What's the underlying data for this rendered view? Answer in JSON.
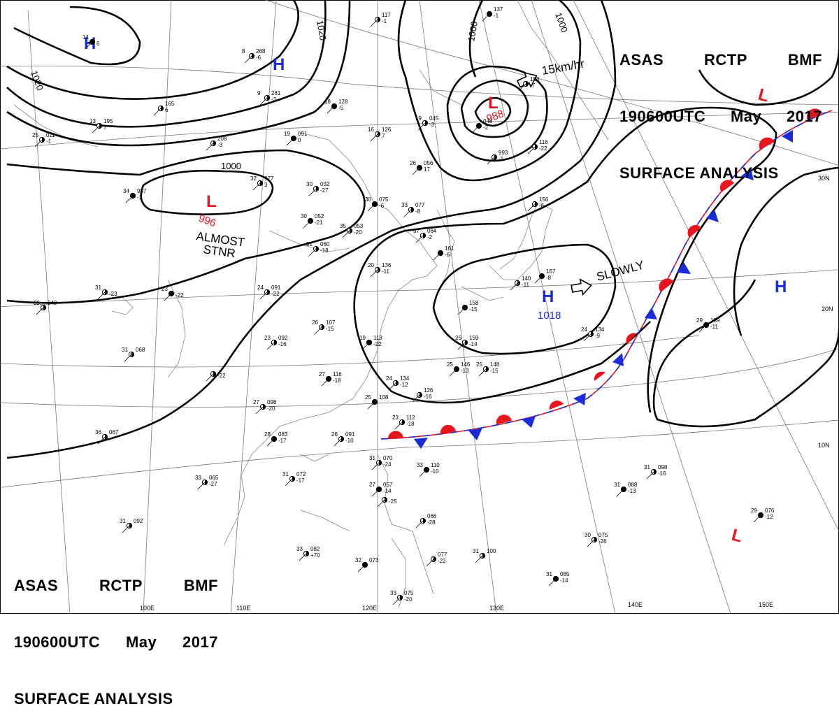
{
  "header_top": {
    "line1_a": "ASAS",
    "line1_b": "RCTP",
    "line1_c": "BMF",
    "line2_a": "190600UTC",
    "line2_b": "May",
    "line2_c": "2017",
    "line3": "SURFACE ANALYSIS"
  },
  "header_bottom": {
    "line1_a": "ASAS",
    "line1_b": "RCTP",
    "line1_c": "BMF",
    "line2_a": "190600UTC",
    "line2_b": "May",
    "line2_c": "2017",
    "line3": "SURFACE ANALYSIS"
  },
  "pressure_centers": {
    "high_nw": "H",
    "high_n": "H",
    "high_japan": {
      "symbol": "H",
      "value": "1018"
    },
    "high_east": "H",
    "low_west": {
      "symbol": "L",
      "value": "996"
    },
    "low_north": {
      "symbol": "L",
      "value": "988"
    },
    "low_ne": "L",
    "low_se": "L"
  },
  "isobar_labels": {
    "nw": "1020",
    "n": "1020",
    "low_west": "1000",
    "low_north": "1000",
    "low_north2": "1000"
  },
  "annotations": {
    "almost_1": "ALMOST",
    "almost_2": "STNR",
    "slowly": "SLOWLY",
    "speed": "15km/hr"
  },
  "longitudes": [
    "100E",
    "110E",
    "120E",
    "130E",
    "140E",
    "150E"
  ],
  "latitudes": [
    "30N",
    "20N",
    "10N"
  ],
  "colors": {
    "high": "#1a2bd9",
    "low": "#e8141e",
    "isobar": "#000000",
    "grid": "#777777"
  },
  "stations": [
    {
      "t": "14",
      "p": "",
      "w": "6"
    },
    {
      "t": "8",
      "p": "268",
      "w": "-6"
    },
    {
      "t": "",
      "p": "117",
      "w": "-1"
    },
    {
      "t": "",
      "p": "137",
      "w": "-1"
    },
    {
      "t": "",
      "p": "153",
      "w": "-7"
    },
    {
      "t": "9",
      "p": "261",
      "w": "-3"
    },
    {
      "t": "18",
      "p": "128",
      "w": "-5"
    },
    {
      "t": "",
      "p": "165",
      "w": "6"
    },
    {
      "t": "13",
      "p": "195",
      "w": "7"
    },
    {
      "t": "19",
      "p": "091",
      "w": "0"
    },
    {
      "t": "16",
      "p": "126",
      "w": "7"
    },
    {
      "t": "19",
      "p": "045",
      "w": "-3"
    },
    {
      "t": "",
      "p": "048",
      "w": "-2"
    },
    {
      "t": "25",
      "p": "011",
      "w": "-1"
    },
    {
      "t": "",
      "p": "208",
      "w": "-3"
    },
    {
      "t": "26",
      "p": "056",
      "w": "17"
    },
    {
      "t": "",
      "p": "993",
      "w": "-1"
    },
    {
      "t": "",
      "p": "116",
      "w": "-22"
    },
    {
      "t": "34",
      "p": "987",
      "w": "-1"
    },
    {
      "t": "32",
      "p": "977",
      "w": "3"
    },
    {
      "t": "30",
      "p": "032",
      "w": "-27"
    },
    {
      "t": "30",
      "p": "075",
      "w": "-6"
    },
    {
      "t": "33",
      "p": "077",
      "w": "-8"
    },
    {
      "t": "",
      "p": "156",
      "w": "-6"
    },
    {
      "t": "30",
      "p": "052",
      "w": "-21"
    },
    {
      "t": "35",
      "p": "053",
      "w": "-20"
    },
    {
      "t": "37",
      "p": "064",
      "w": "-2"
    },
    {
      "t": "",
      "p": "161",
      "w": "-6"
    },
    {
      "t": "31",
      "p": "060",
      "w": "-18"
    },
    {
      "t": "20",
      "p": "136",
      "w": "-11"
    },
    {
      "t": "",
      "p": "167",
      "w": "-8"
    },
    {
      "t": "",
      "p": "140",
      "w": "-11"
    },
    {
      "t": "31",
      "p": "",
      "w": "-23"
    },
    {
      "t": "23",
      "p": "",
      "w": "-22"
    },
    {
      "t": "24",
      "p": "091",
      "w": "-22"
    },
    {
      "t": "39",
      "p": "040",
      "w": ""
    },
    {
      "t": "",
      "p": "158",
      "w": "-15"
    },
    {
      "t": "26",
      "p": "107",
      "w": "-15"
    },
    {
      "t": "23",
      "p": "092",
      "w": "-16"
    },
    {
      "t": "19",
      "p": "113",
      "w": "-22"
    },
    {
      "t": "25",
      "p": "159",
      "w": "-14"
    },
    {
      "t": "24",
      "p": "134",
      "w": "-9"
    },
    {
      "t": "29",
      "p": "139",
      "w": "-11"
    },
    {
      "t": "31",
      "p": "068",
      "w": ""
    },
    {
      "t": "",
      "p": "",
      "w": "-22"
    },
    {
      "t": "27",
      "p": "116",
      "w": "-18"
    },
    {
      "t": "24",
      "p": "134",
      "w": "-12"
    },
    {
      "t": "",
      "p": "126",
      "w": "-16"
    },
    {
      "t": "25",
      "p": "146",
      "w": "-13"
    },
    {
      "t": "25",
      "p": "148",
      "w": "-15"
    },
    {
      "t": "27",
      "p": "098",
      "w": "-20"
    },
    {
      "t": "25",
      "p": "108",
      "w": ""
    },
    {
      "t": "23",
      "p": "112",
      "w": "-18"
    },
    {
      "t": "36",
      "p": "067",
      "w": ""
    },
    {
      "t": "28",
      "p": "083",
      "w": "-17"
    },
    {
      "t": "26",
      "p": "091",
      "w": "-10"
    },
    {
      "t": "31",
      "p": "070",
      "w": "-24"
    },
    {
      "t": "33",
      "p": "110",
      "w": "-10"
    },
    {
      "t": "33",
      "p": "065",
      "w": "-27"
    },
    {
      "t": "31",
      "p": "072",
      "w": "-17"
    },
    {
      "t": "27",
      "p": "057",
      "w": "-14"
    },
    {
      "t": "",
      "p": "",
      "w": "-25"
    },
    {
      "t": "31",
      "p": "098",
      "w": "-16"
    },
    {
      "t": "31",
      "p": "088",
      "w": "-13"
    },
    {
      "t": "31",
      "p": "092",
      "w": ""
    },
    {
      "t": "",
      "p": "066",
      "w": "-28"
    },
    {
      "t": "29",
      "p": "076",
      "w": "-12"
    },
    {
      "t": "30",
      "p": "075",
      "w": "-26"
    },
    {
      "t": "33",
      "p": "082",
      "w": "+70"
    },
    {
      "t": "32",
      "p": "073",
      "w": ""
    },
    {
      "t": "",
      "p": "077",
      "w": "-22"
    },
    {
      "t": "31",
      "p": "100",
      "w": ""
    },
    {
      "t": "31",
      "p": "085",
      "w": "-14"
    },
    {
      "t": "33",
      "p": "075",
      "w": "-20"
    }
  ]
}
